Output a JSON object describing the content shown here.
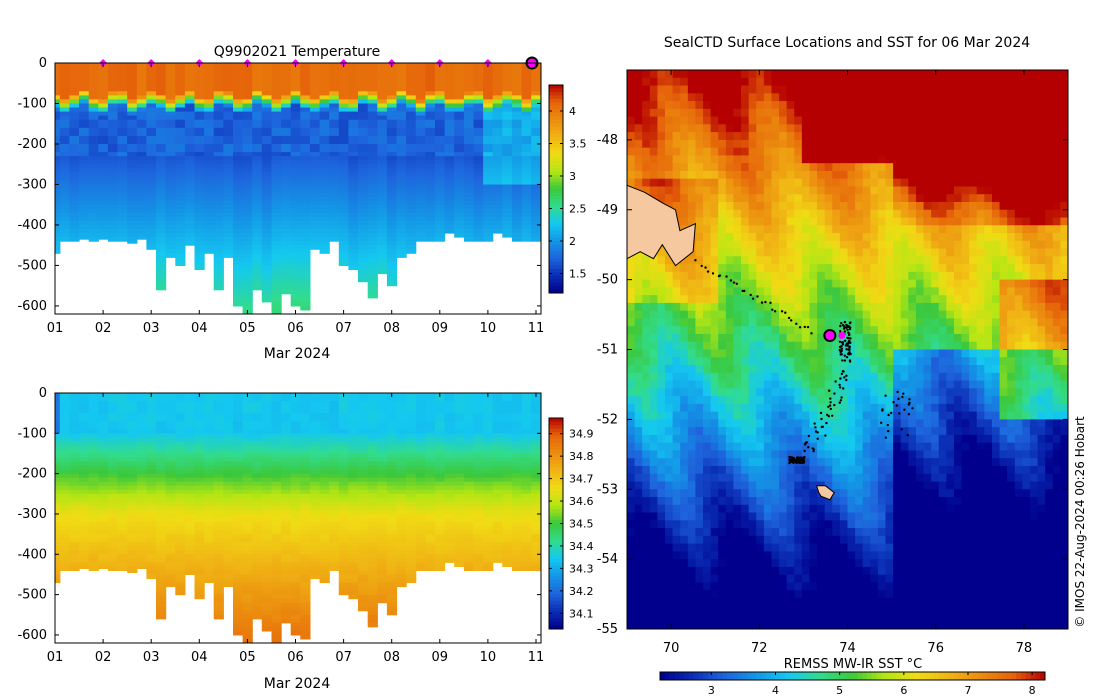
{
  "colors": {
    "temp_scale": [
      "#00008c",
      "#0a2db4",
      "#1e64dc",
      "#1496e6",
      "#14c8f0",
      "#32dc8c",
      "#3cc83c",
      "#b4e614",
      "#f0dc14",
      "#f0b414",
      "#eb8c0f",
      "#e6640a",
      "#b40000"
    ],
    "sal_scale": [
      "#00008c",
      "#0a2db4",
      "#1e64dc",
      "#1496e6",
      "#14c8f0",
      "#32dc8c",
      "#3cc83c",
      "#b4e614",
      "#f0dc14",
      "#f0b414",
      "#eb8c0f",
      "#e6640a",
      "#b40000"
    ],
    "sst_scale": [
      "#00008c",
      "#0a2db4",
      "#1e64dc",
      "#1496e6",
      "#14c8f0",
      "#32dc8c",
      "#3cc83c",
      "#b4e614",
      "#f0dc14",
      "#f0b414",
      "#eb8c0f",
      "#e6640a",
      "#b40000"
    ],
    "land": "#f5c8a0",
    "track": "#000000",
    "marker": "#ff00ff"
  },
  "chart_data": [
    {
      "type": "heatmap",
      "title": "Q9902021  Temperature",
      "xlabel": "Mar 2024",
      "ylabel": "",
      "xlim": [
        1,
        11
      ],
      "ylim": [
        -620,
        0
      ],
      "xticks": [
        "01",
        "02",
        "03",
        "04",
        "05",
        "06",
        "07",
        "08",
        "09",
        "10",
        "11"
      ],
      "yticks": [
        "0",
        "-100",
        "-200",
        "-300",
        "-400",
        "-500",
        "-600"
      ],
      "colorbar": {
        "range": [
          1.2,
          4.4
        ],
        "ticks": [
          "1.5",
          "2",
          "2.5",
          "3",
          "3.5",
          "4"
        ]
      },
      "profile_days": [
        1.0,
        1.1,
        1.3,
        1.5,
        1.7,
        1.9,
        2.1,
        2.3,
        2.5,
        2.7,
        2.9,
        3.1,
        3.3,
        3.5,
        3.7,
        3.9,
        4.1,
        4.3,
        4.5,
        4.7,
        4.9,
        5.1,
        5.3,
        5.5,
        5.7,
        5.9,
        6.1,
        6.3,
        6.5,
        6.7,
        6.9,
        7.1,
        7.3,
        7.5,
        7.7,
        7.9,
        8.1,
        8.3,
        8.5,
        8.7,
        8.9,
        9.1,
        9.3,
        9.5,
        9.7,
        9.9,
        10.1,
        10.3,
        10.5,
        10.7,
        10.9
      ],
      "profile_max_depth": [
        470,
        440,
        440,
        435,
        440,
        435,
        440,
        440,
        445,
        435,
        460,
        560,
        480,
        500,
        450,
        510,
        470,
        560,
        480,
        600,
        620,
        560,
        590,
        620,
        570,
        600,
        610,
        460,
        470,
        440,
        500,
        510,
        540,
        580,
        520,
        550,
        480,
        470,
        440,
        440,
        440,
        420,
        430,
        440,
        440,
        440,
        420,
        430,
        440,
        440,
        440
      ],
      "markers_day": [
        2,
        3,
        4,
        5,
        6,
        7,
        8,
        9,
        10
      ],
      "current_day": 11
    },
    {
      "type": "heatmap",
      "title": "",
      "xlabel": "Mar 2024",
      "xlim": [
        1,
        11
      ],
      "ylim": [
        -620,
        0
      ],
      "xticks": [
        "01",
        "02",
        "03",
        "04",
        "05",
        "06",
        "07",
        "08",
        "09",
        "10",
        "11"
      ],
      "yticks": [
        "0",
        "-100",
        "-200",
        "-300",
        "-400",
        "-500",
        "-600"
      ],
      "colorbar": {
        "range": [
          34.03,
          34.97
        ],
        "ticks": [
          "34.1",
          "34.2",
          "34.3",
          "34.4",
          "34.5",
          "34.6",
          "34.7",
          "34.8",
          "34.9"
        ]
      }
    },
    {
      "type": "heatmap",
      "title": "SealCTD Surface Locations and SST for 06 Mar 2024",
      "xlim": [
        69,
        79
      ],
      "ylim": [
        -55,
        -47
      ],
      "xticks": [
        "70",
        "72",
        "74",
        "76",
        "78"
      ],
      "yticks": [
        "-48",
        "-49",
        "-50",
        "-51",
        "-52",
        "-53",
        "-54",
        "-55"
      ],
      "colorbar": {
        "label": "REMSS MW-IR SST °C",
        "range": [
          2.2,
          8.2
        ],
        "ticks": [
          "3",
          "4",
          "5",
          "6",
          "7",
          "8"
        ]
      },
      "current_position": {
        "lon": 73.6,
        "lat": -50.8
      },
      "copyright": "© IMOS 22-Aug-2024 00:26 Hobart"
    }
  ]
}
